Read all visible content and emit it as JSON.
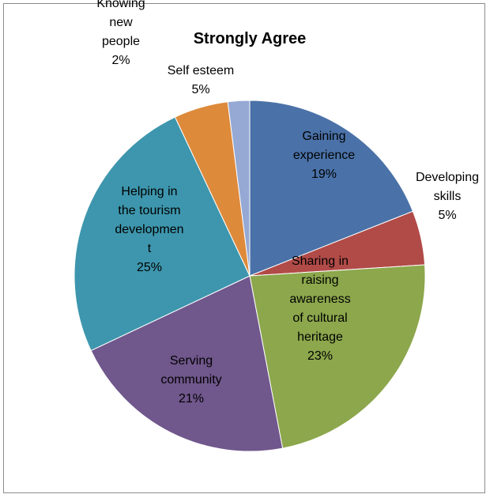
{
  "chart_data": {
    "type": "pie",
    "title": "Strongly Agree",
    "start_angle_deg": 0,
    "direction": "clockwise",
    "slices": [
      {
        "label": "Gaining experience",
        "value": 19,
        "display": "19%",
        "color": "#4a72a8"
      },
      {
        "label": "Developing skills",
        "value": 5,
        "display": "5%",
        "color": "#b14b48"
      },
      {
        "label": "Sharing in raising awareness of cultural heritage",
        "value": 23,
        "display": "23%",
        "color": "#8ca74c"
      },
      {
        "label": "Serving community",
        "value": 21,
        "display": "21%",
        "color": "#70578c"
      },
      {
        "label": "Helping in the tourism development",
        "value": 25,
        "display": "25%",
        "color": "#3d96ad"
      },
      {
        "label": "Self esteem",
        "value": 5,
        "display": "5%",
        "color": "#de8a3b"
      },
      {
        "label": "Knowing new people",
        "value": 2,
        "display": "2%",
        "color": "#95a9d4"
      }
    ],
    "label_lines": [
      [
        "Gaining",
        "experience",
        "19%"
      ],
      [
        "Developing",
        "skills",
        "5%"
      ],
      [
        "Sharing in",
        "raising",
        "awareness",
        "of cultural",
        "heritage",
        "23%"
      ],
      [
        "Serving",
        "community",
        "21%"
      ],
      [
        "Helping in",
        "the tourism",
        "developmen",
        "t",
        "25%"
      ],
      [
        "Self esteem",
        "5%"
      ],
      [
        "Knowing",
        "new",
        "people",
        "2%"
      ]
    ]
  }
}
